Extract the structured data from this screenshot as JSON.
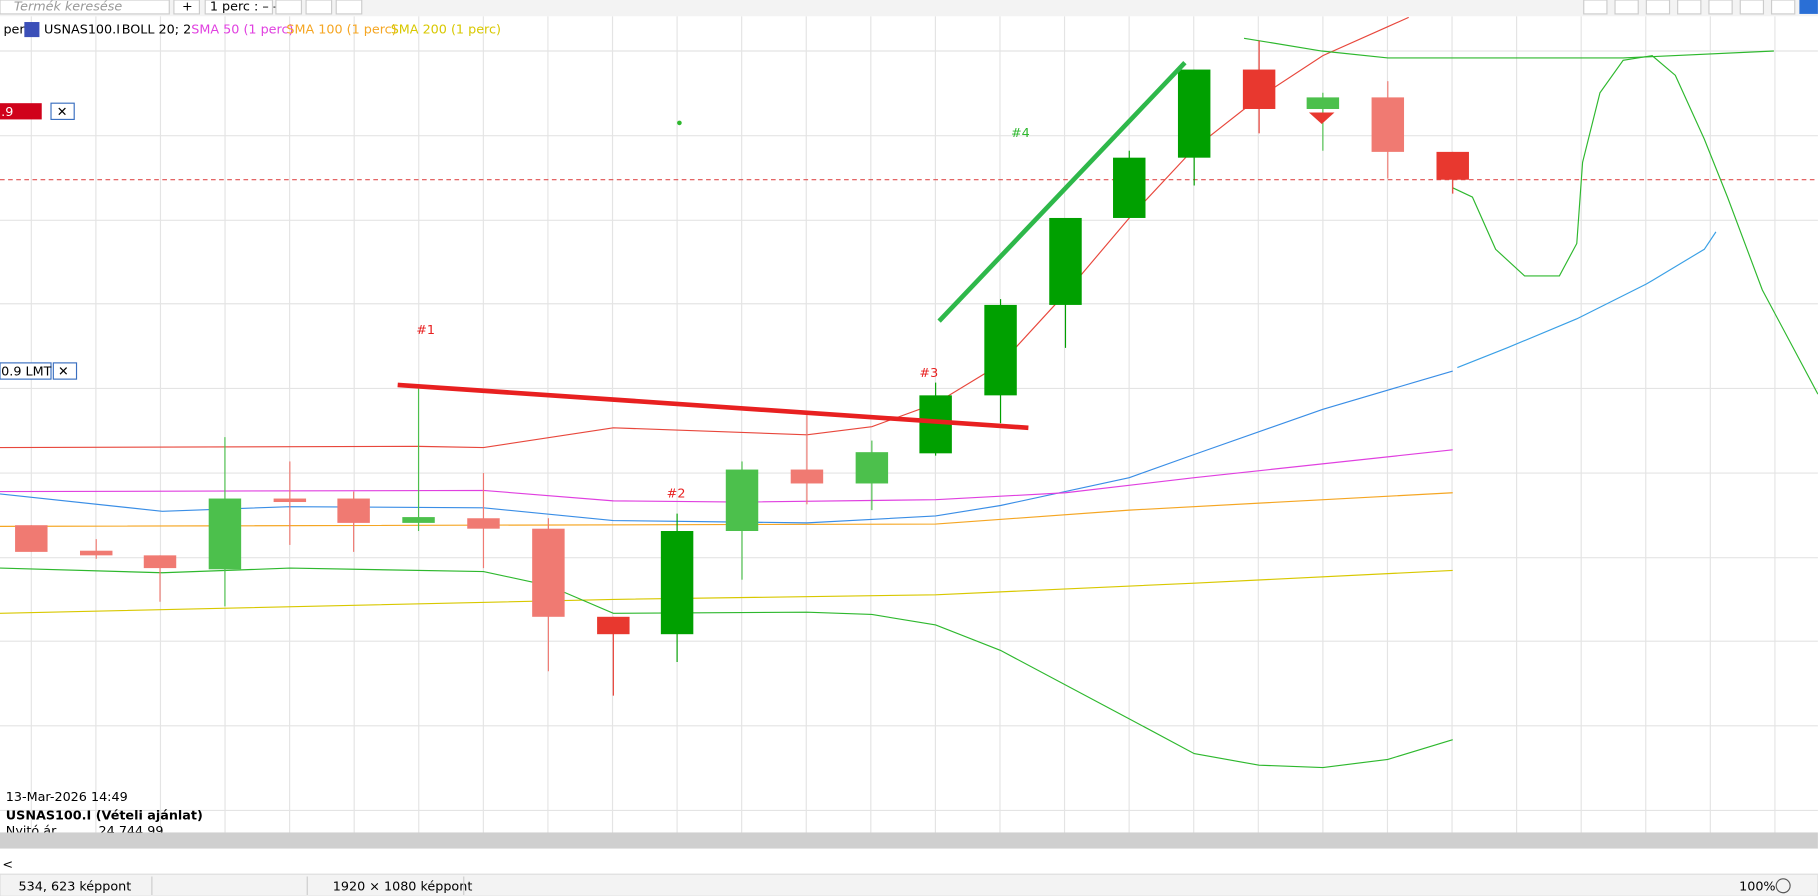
{
  "toolbar": {
    "search": "Termék keresése",
    "add": "+",
    "interval": "1 perc : – –"
  },
  "legend": {
    "prefix": "perc",
    "symbol": "USNAS100.I",
    "boll": "BOLL 20; 2",
    "sma50": "SMA 50 (1 perc)",
    "sma100": "SMA 100 (1 perc)",
    "sma200": "SMA 200 (1 perc)"
  },
  "orders": {
    "stop": ".9",
    "limit": "0.9 LMT"
  },
  "annotations": [
    "#1",
    "#2",
    "#3",
    "#4"
  ],
  "info": {
    "datetime": "13-Mar-2026 14:49",
    "instrument": "USNAS100.I (Vételi ajánlat)",
    "open_label": "Nyitó ár",
    "open_value": "24 744,99"
  },
  "status": {
    "cursor": "534, 623 képpont",
    "size": "1920 × 1080 képpont",
    "zoom": "100%"
  }
}
